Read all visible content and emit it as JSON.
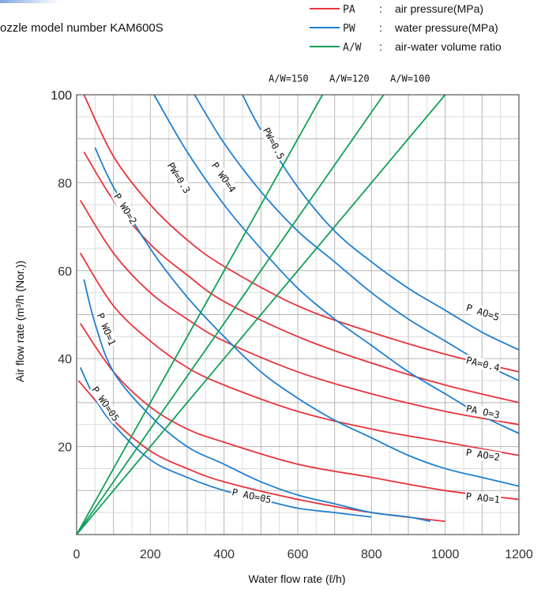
{
  "chart_data": {
    "type": "line",
    "title": "ozzle model number  KAM600S",
    "xlabel": "Water flow rate (ℓ/h)",
    "ylabel": "Air flow rate (m³/h (Nor.))",
    "xlim": [
      0,
      1200
    ],
    "ylim": [
      0,
      100
    ],
    "x_ticks": [
      "0",
      "200",
      "400",
      "600",
      "800",
      "1000",
      "1200"
    ],
    "y_ticks": [
      "20",
      "40",
      "60",
      "80",
      "100"
    ],
    "grid": true,
    "legend_position": "top-right",
    "legend": [
      {
        "code": "PA",
        "desc": "air pressure(MPa)",
        "color": "#e8343c"
      },
      {
        "code": "PW",
        "desc": "water pressure(MPa)",
        "color": "#1f7fd0"
      },
      {
        "code": "A/W",
        "desc": "air-water volume ratio",
        "color": "#11a05a"
      }
    ],
    "colors": {
      "pa": "#e8343c",
      "pw": "#1f7fd0",
      "aw": "#11a05a",
      "grid": "#bbbbbb",
      "frame": "#555555"
    },
    "series": [
      {
        "group": "pa",
        "label": "PA=0.5",
        "points": [
          [
            20,
            100
          ],
          [
            100,
            86
          ],
          [
            200,
            75
          ],
          [
            300,
            67
          ],
          [
            400,
            61
          ],
          [
            600,
            52
          ],
          [
            800,
            46
          ],
          [
            1000,
            41
          ],
          [
            1200,
            37
          ]
        ]
      },
      {
        "group": "pa",
        "label": "PA=0.4",
        "points": [
          [
            20,
            87
          ],
          [
            100,
            76
          ],
          [
            200,
            66
          ],
          [
            300,
            59
          ],
          [
            400,
            53
          ],
          [
            600,
            45
          ],
          [
            800,
            39
          ],
          [
            1000,
            34
          ],
          [
            1200,
            30
          ]
        ]
      },
      {
        "group": "pa",
        "label": "PA=0.3",
        "points": [
          [
            10,
            76
          ],
          [
            100,
            64
          ],
          [
            200,
            55
          ],
          [
            300,
            49
          ],
          [
            400,
            44
          ],
          [
            600,
            37
          ],
          [
            800,
            32
          ],
          [
            1000,
            28
          ],
          [
            1200,
            25
          ]
        ]
      },
      {
        "group": "pa",
        "label": "PA=0.2",
        "points": [
          [
            10,
            64
          ],
          [
            100,
            52
          ],
          [
            200,
            44
          ],
          [
            300,
            38
          ],
          [
            400,
            34
          ],
          [
            600,
            28
          ],
          [
            800,
            24
          ],
          [
            1000,
            21
          ],
          [
            1200,
            18
          ]
        ]
      },
      {
        "group": "pa",
        "label": "PA=0.1",
        "points": [
          [
            10,
            48
          ],
          [
            100,
            37
          ],
          [
            200,
            29
          ],
          [
            300,
            24
          ],
          [
            400,
            21
          ],
          [
            600,
            16
          ],
          [
            800,
            13
          ],
          [
            1000,
            10
          ],
          [
            1200,
            8
          ]
        ]
      },
      {
        "group": "pa",
        "label": "PA=0.05",
        "points": [
          [
            5,
            35
          ],
          [
            100,
            26
          ],
          [
            200,
            19
          ],
          [
            300,
            15
          ],
          [
            400,
            12
          ],
          [
            600,
            8
          ],
          [
            800,
            5
          ],
          [
            1000,
            3
          ]
        ]
      },
      {
        "group": "pw",
        "label": "PW=0.5",
        "points": [
          [
            450,
            100
          ],
          [
            500,
            92
          ],
          [
            600,
            79
          ],
          [
            700,
            69
          ],
          [
            800,
            62
          ],
          [
            900,
            56
          ],
          [
            1000,
            51
          ],
          [
            1100,
            46
          ],
          [
            1200,
            42
          ]
        ]
      },
      {
        "group": "pw",
        "label": "PW=0.4",
        "points": [
          [
            320,
            100
          ],
          [
            400,
            89
          ],
          [
            500,
            78
          ],
          [
            600,
            69
          ],
          [
            700,
            62
          ],
          [
            800,
            55
          ],
          [
            900,
            49
          ],
          [
            1000,
            44
          ],
          [
            1100,
            39
          ],
          [
            1200,
            35
          ]
        ]
      },
      {
        "group": "pw",
        "label": "PW=0.3",
        "points": [
          [
            210,
            100
          ],
          [
            300,
            87
          ],
          [
            400,
            75
          ],
          [
            500,
            65
          ],
          [
            600,
            56
          ],
          [
            700,
            49
          ],
          [
            800,
            43
          ],
          [
            900,
            37
          ],
          [
            1000,
            32
          ],
          [
            1100,
            27
          ],
          [
            1200,
            23
          ]
        ]
      },
      {
        "group": "pw",
        "label": "PW=0.2",
        "points": [
          [
            50,
            88
          ],
          [
            100,
            79
          ],
          [
            200,
            65
          ],
          [
            300,
            54
          ],
          [
            400,
            45
          ],
          [
            500,
            37
          ],
          [
            600,
            31
          ],
          [
            700,
            26
          ],
          [
            800,
            22
          ],
          [
            900,
            18
          ],
          [
            1000,
            15
          ],
          [
            1100,
            13
          ],
          [
            1200,
            11
          ]
        ]
      },
      {
        "group": "pw",
        "label": "PW=0.1",
        "points": [
          [
            20,
            58
          ],
          [
            50,
            48
          ],
          [
            100,
            37
          ],
          [
            200,
            27
          ],
          [
            300,
            20
          ],
          [
            400,
            16
          ],
          [
            500,
            12
          ],
          [
            600,
            9
          ],
          [
            700,
            7
          ],
          [
            800,
            5
          ],
          [
            900,
            4
          ],
          [
            960,
            3
          ]
        ]
      },
      {
        "group": "pw",
        "label": "PW=0.05",
        "points": [
          [
            10,
            38
          ],
          [
            50,
            31
          ],
          [
            100,
            25
          ],
          [
            200,
            17
          ],
          [
            300,
            13
          ],
          [
            400,
            10
          ],
          [
            500,
            8
          ],
          [
            600,
            6
          ],
          [
            700,
            5
          ],
          [
            800,
            4
          ]
        ]
      },
      {
        "group": "aw",
        "label": "A/W=150",
        "points": [
          [
            0,
            0
          ],
          [
            667,
            100
          ]
        ]
      },
      {
        "group": "aw",
        "label": "A/W=120",
        "points": [
          [
            0,
            0
          ],
          [
            833,
            100
          ]
        ]
      },
      {
        "group": "aw",
        "label": "A/W=100",
        "points": [
          [
            0,
            0
          ],
          [
            1000,
            100
          ]
        ]
      }
    ],
    "annotations": [
      {
        "text": "PW=0.5",
        "x": 505,
        "y": 92
      },
      {
        "text": "P WO=4",
        "x": 365,
        "y": 84
      },
      {
        "text": "PW=0.3",
        "x": 245,
        "y": 84
      },
      {
        "text": "P WO=2",
        "x": 100,
        "y": 77
      },
      {
        "text": "P WO=1",
        "x": 55,
        "y": 50
      },
      {
        "text": "P WO=05",
        "x": 40,
        "y": 33
      },
      {
        "text": "P AO=5",
        "x": 1055,
        "y": 51
      },
      {
        "text": "PA=0.4",
        "x": 1055,
        "y": 39
      },
      {
        "text": "PA O=3",
        "x": 1055,
        "y": 28
      },
      {
        "text": "P AO=2",
        "x": 1055,
        "y": 18
      },
      {
        "text": "P AO=1",
        "x": 1055,
        "y": 8
      },
      {
        "text": "P AO=05",
        "x": 420,
        "y": 9
      },
      {
        "text": "A/W=150",
        "x": 575,
        "y": 103
      },
      {
        "text": "A/W=120",
        "x": 740,
        "y": 103
      },
      {
        "text": "A/W=100",
        "x": 905,
        "y": 103
      }
    ]
  }
}
